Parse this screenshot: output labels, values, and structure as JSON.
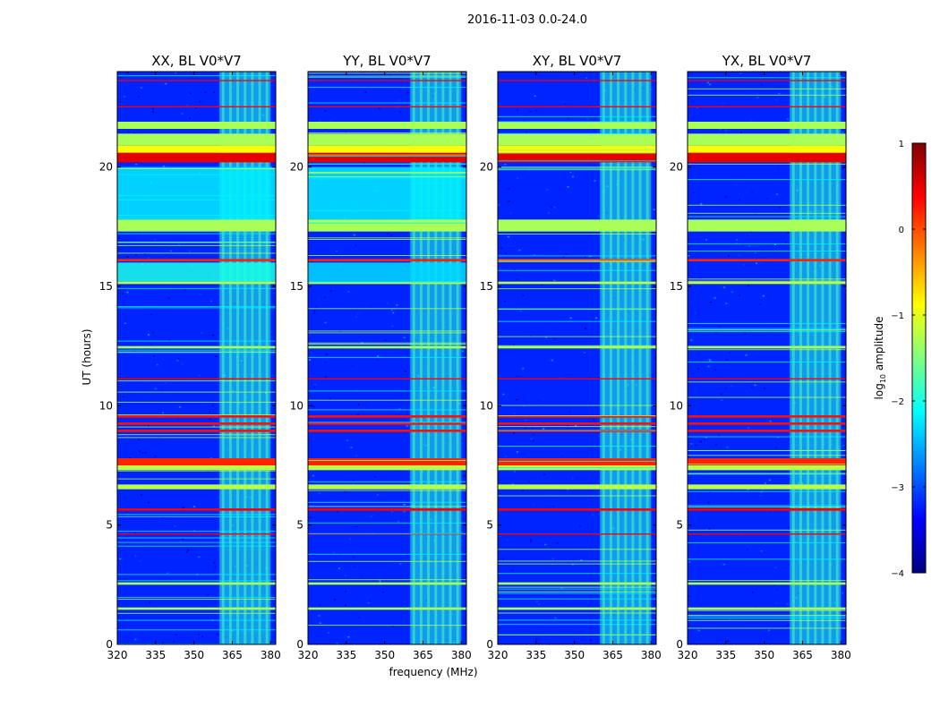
{
  "suptitle": "2016-11-03 0.0-24.0",
  "xlabel": "frequency (MHz)",
  "ylabel": "UT (hours)",
  "colorbar": {
    "label_prefix": "log",
    "label_sub": "10",
    "label_suffix": " amplitude",
    "range": [
      -4,
      1
    ],
    "ticks": [
      "1",
      "0",
      "−1",
      "−2",
      "−3",
      "−4"
    ],
    "colormap": "jet",
    "colors": [
      "#000080",
      "#0000ff",
      "#0080ff",
      "#00ffff",
      "#80ff80",
      "#ffff00",
      "#ff8000",
      "#ff0000",
      "#800000"
    ]
  },
  "chart_data": {
    "type": "heatmap",
    "description_units": {
      "x": "MHz",
      "y": "UT hours",
      "z": "log10 amplitude"
    },
    "xlim": [
      320,
      382
    ],
    "ylim": [
      0,
      24
    ],
    "xticks": [
      "320",
      "335",
      "350",
      "365",
      "380"
    ],
    "yticks": [
      "0",
      "5",
      "10",
      "15",
      "20"
    ],
    "panels": [
      {
        "title": "XX, BL V0*V7",
        "show_yticks": true
      },
      {
        "title": "YY, BL V0*V7",
        "show_yticks": true
      },
      {
        "title": "XY, BL V0*V7",
        "show_yticks": true
      },
      {
        "title": "YX, BL V0*V7",
        "show_yticks": true
      }
    ],
    "background_level": -3.2,
    "rfi_band_MHz": [
      360,
      380
    ],
    "rfi_band_level": -2.0,
    "horizontal_bands": [
      {
        "t0": 20.2,
        "t1": 20.6,
        "level": 0.5
      },
      {
        "t0": 20.6,
        "t1": 20.9,
        "level": -0.9
      },
      {
        "t0": 20.9,
        "t1": 21.4,
        "level": -1.3
      },
      {
        "t0": 21.6,
        "t1": 21.9,
        "level": -1.3
      },
      {
        "t0": 17.3,
        "t1": 17.8,
        "level": -1.3
      },
      {
        "t0": 15.1,
        "t1": 15.2,
        "level": -1.2
      },
      {
        "t0": 16.05,
        "t1": 16.15,
        "level": 0.2
      },
      {
        "t0": 7.5,
        "t1": 7.8,
        "level": 0.2
      },
      {
        "t0": 7.3,
        "t1": 7.5,
        "level": -1.2
      },
      {
        "t0": 9.2,
        "t1": 9.3,
        "level": 0.3
      },
      {
        "t0": 9.5,
        "t1": 9.6,
        "level": 0.3
      },
      {
        "t0": 8.9,
        "t1": 9.0,
        "level": 0.3
      },
      {
        "t0": 5.6,
        "t1": 5.7,
        "level": 0.4
      },
      {
        "t0": 6.5,
        "t1": 6.7,
        "level": -1.2
      },
      {
        "t0": 12.4,
        "t1": 12.5,
        "level": -1.3
      },
      {
        "t0": 11.1,
        "t1": 11.15,
        "level": 0.4
      },
      {
        "t0": 2.5,
        "t1": 2.6,
        "level": -1.3
      },
      {
        "t0": 1.45,
        "t1": 1.55,
        "level": -1.3
      },
      {
        "t0": 4.6,
        "t1": 4.65,
        "level": 0.4
      },
      {
        "t0": 22.5,
        "t1": 22.55,
        "level": 0.4
      },
      {
        "t0": 23.6,
        "t1": 23.65,
        "level": 0.4
      }
    ],
    "panel_specific": [
      {
        "panel": "XX",
        "t0": 17.8,
        "t1": 20.0,
        "level": -2.2
      },
      {
        "panel": "XX",
        "t0": 15.2,
        "t1": 16.0,
        "level": -2.0
      },
      {
        "panel": "YY",
        "t0": 17.8,
        "t1": 20.0,
        "level": -2.2
      },
      {
        "panel": "YY",
        "t0": 15.2,
        "t1": 16.0,
        "level": -2.3
      }
    ]
  }
}
